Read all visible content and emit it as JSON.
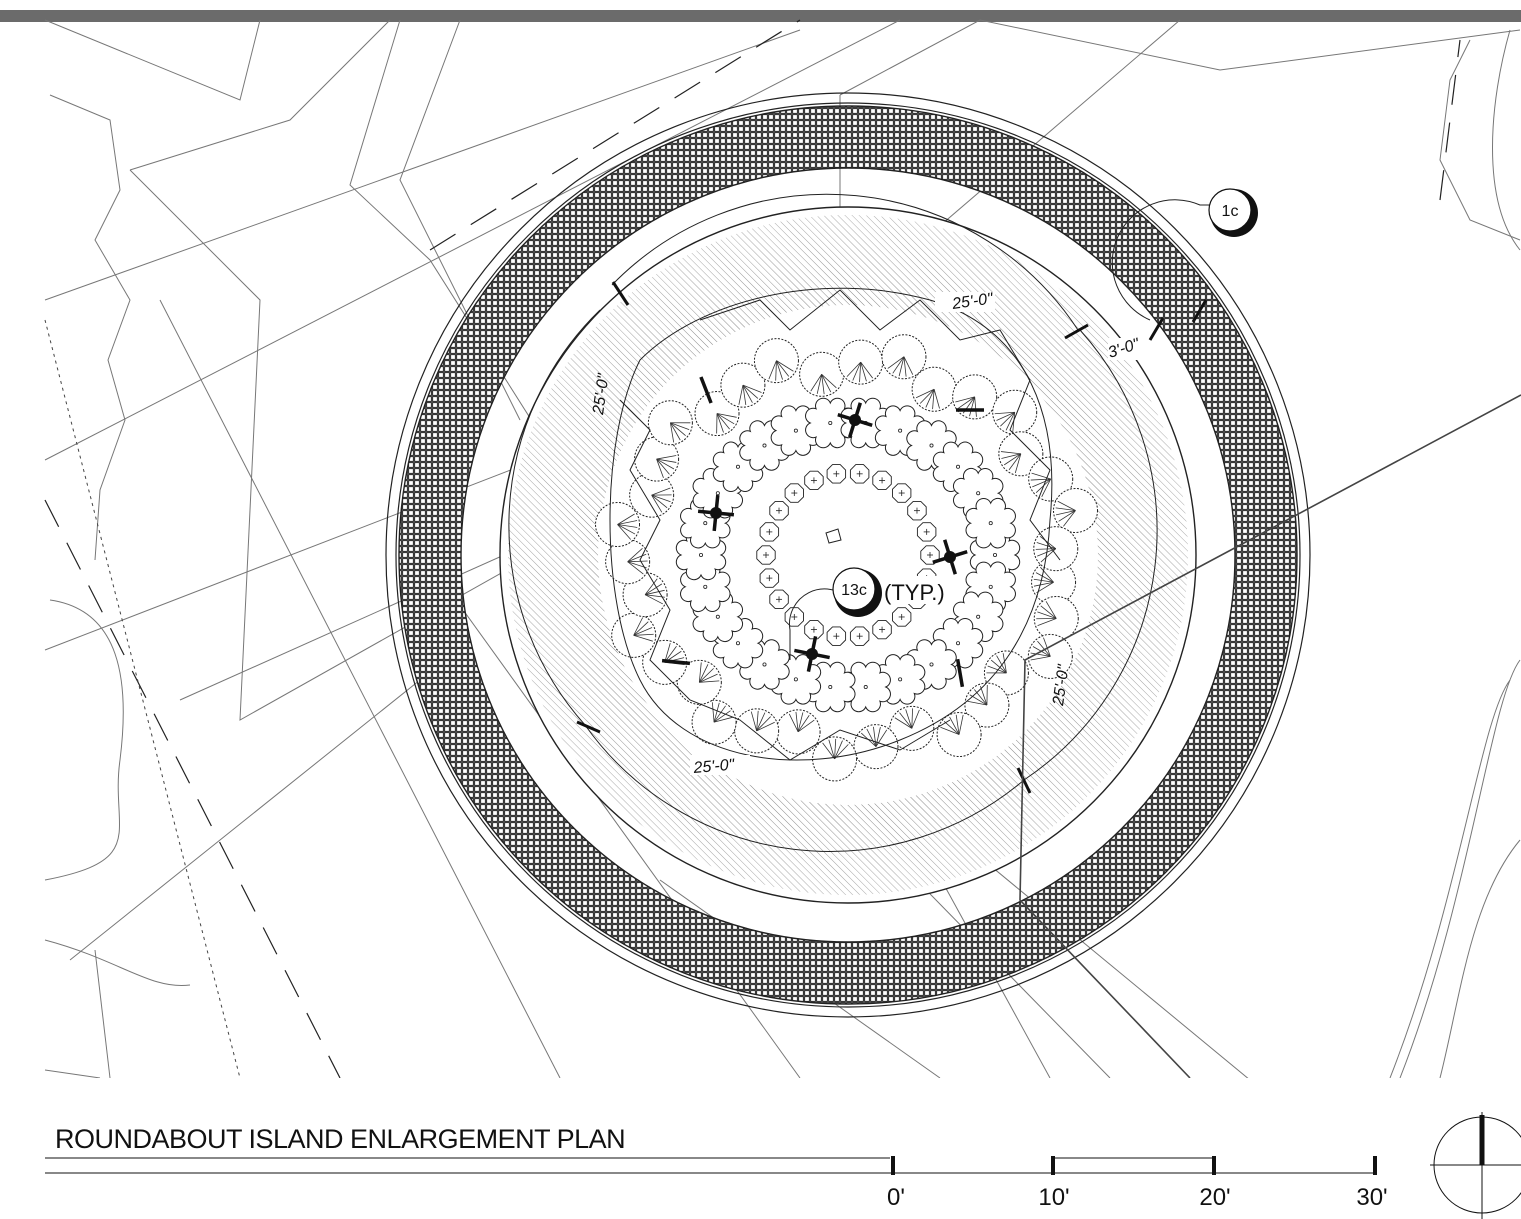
{
  "title": "ROUNDABOUT ISLAND ENLARGEMENT PLAN",
  "scale_bar": {
    "labels": [
      "0'",
      "10'",
      "20'",
      "30'"
    ]
  },
  "dimensions": {
    "top": "25'-0\"",
    "left": "25'-0\"",
    "bottom": "25'-0\"",
    "right": "25'-0\"",
    "band": "3'-0\""
  },
  "callouts": {
    "detail_top": "1c",
    "detail_center": "13c",
    "detail_center_note": "(TYP.)"
  },
  "colors": {
    "ink": "#111111",
    "frame": "#6b6b6b",
    "hatch": "#555555",
    "paving": "#333333"
  },
  "icons": [
    "north-arrow-icon",
    "detail-callout-icon",
    "shrub-symbol-icon",
    "tree-symbol-icon"
  ]
}
